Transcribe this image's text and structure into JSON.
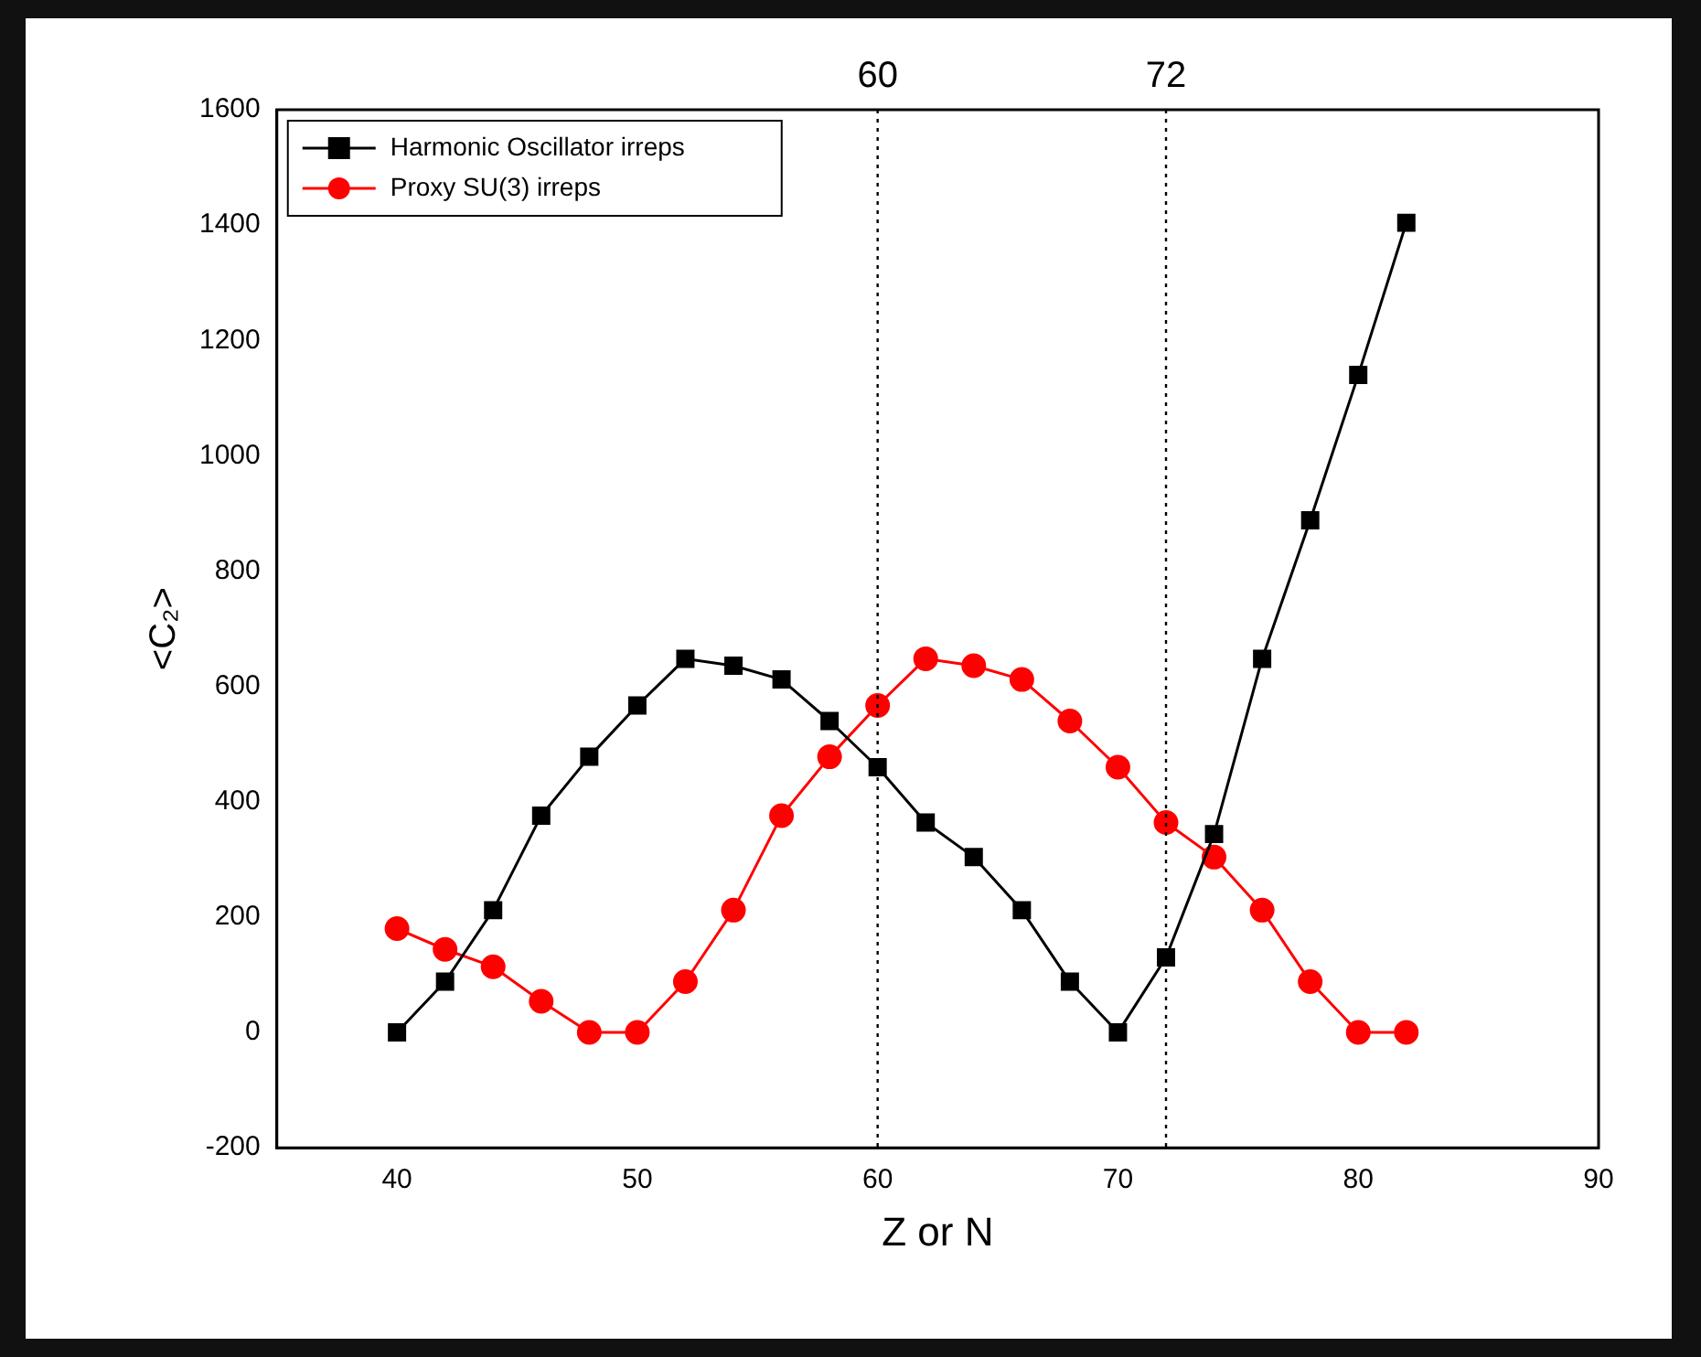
{
  "chart_data": {
    "type": "line",
    "xlabel": "Z or N",
    "ylabel": "<C₂>",
    "x": [
      40,
      42,
      44,
      46,
      48,
      50,
      52,
      54,
      56,
      58,
      60,
      62,
      64,
      66,
      68,
      70,
      72,
      74,
      76,
      78,
      80,
      82
    ],
    "series": [
      {
        "name": "Harmonic Oscillator irreps",
        "color": "#000000",
        "marker": "square",
        "values": [
          0,
          88,
          212,
          376,
          478,
          567,
          648,
          636,
          612,
          540,
          460,
          364,
          304,
          212,
          88,
          0,
          130,
          344,
          648,
          888,
          1140,
          1404
        ]
      },
      {
        "name": "Proxy SU(3) irreps",
        "color": "#ff0000",
        "marker": "circle",
        "values": [
          180,
          144,
          114,
          54,
          0,
          0,
          88,
          212,
          376,
          478,
          567,
          648,
          636,
          612,
          540,
          460,
          364,
          304,
          212,
          88,
          0,
          0
        ]
      }
    ],
    "xlim": [
      35,
      90
    ],
    "xticks": [
      40,
      50,
      60,
      70,
      80,
      90
    ],
    "ylim": [
      -200,
      1600
    ],
    "yticks": [
      -200,
      0,
      200,
      400,
      600,
      800,
      1000,
      1200,
      1400,
      1600
    ],
    "ref_lines": [
      {
        "axis": "x",
        "value": 60,
        "label": "60",
        "line_style": "dotted"
      },
      {
        "axis": "x",
        "value": 72,
        "label": "72",
        "line_style": "dotted"
      }
    ],
    "legend": "top left",
    "grid": false,
    "line_style": "solid"
  }
}
